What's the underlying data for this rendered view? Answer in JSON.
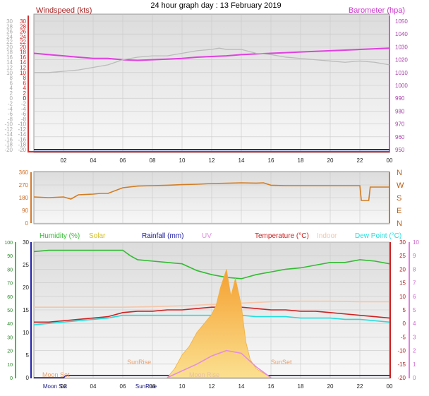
{
  "title": "24 hour graph day : 13 February 2019",
  "chart_data": [
    {
      "type": "line",
      "panel": "wind-baro",
      "left_axis_label": "Windspeed (kts)",
      "right_axis_label": "Barometer (hpa)",
      "left_ticks": [
        30,
        28,
        26,
        24,
        22,
        20,
        18,
        16,
        14,
        12,
        10,
        8,
        6,
        4,
        2,
        0,
        -2,
        -4,
        -6,
        -8,
        -10,
        -12,
        -14,
        -16,
        -18,
        -20
      ],
      "left_ylim": [
        -20,
        30
      ],
      "right_ticks": [
        1050,
        1040,
        1030,
        1020,
        1010,
        1000,
        990,
        980,
        970,
        960,
        950
      ],
      "right_ylim": [
        950,
        1050
      ],
      "x_ticks": [
        "02",
        "04",
        "06",
        "08",
        "10",
        "12",
        "14",
        "16",
        "18",
        "20",
        "22",
        "00"
      ],
      "series": [
        {
          "color": "#e040e0",
          "axis": "right",
          "x": [
            0,
            1,
            2,
            3,
            4,
            5,
            6,
            7,
            8,
            9,
            10,
            11,
            12,
            13,
            14,
            15,
            16,
            17,
            18,
            19,
            20,
            21,
            22,
            23,
            24
          ],
          "values": [
            1025,
            1024,
            1023,
            1022,
            1021,
            1021,
            1020,
            1019.5,
            1020,
            1020.5,
            1021,
            1022,
            1022.5,
            1023,
            1024,
            1024.5,
            1025,
            1025.5,
            1026,
            1026.5,
            1027,
            1027.5,
            1028,
            1028.5,
            1029
          ]
        },
        {
          "color": "#bbbbbb",
          "axis": "left",
          "x": [
            0,
            1,
            2,
            3,
            4,
            5,
            6,
            7,
            8,
            9,
            10,
            11,
            12,
            12.5,
            13,
            14,
            15,
            16,
            17,
            18,
            19,
            20,
            21,
            22,
            23,
            24
          ],
          "values": [
            10,
            10,
            10.5,
            11,
            12,
            13,
            15,
            16,
            16.5,
            16.5,
            17.5,
            18.5,
            19,
            19.5,
            19,
            19,
            17.5,
            17,
            16,
            15.5,
            15,
            14.5,
            14,
            14.5,
            14,
            13
          ]
        }
      ]
    },
    {
      "type": "line",
      "panel": "wind-direction",
      "left_ticks": [
        360,
        270,
        180,
        90,
        0
      ],
      "left_ylim": [
        0,
        360
      ],
      "right_compass": [
        "N",
        "W",
        "S",
        "E",
        "N"
      ],
      "series": [
        {
          "color": "#d27c22",
          "x": [
            0,
            1,
            2,
            2.5,
            3,
            4,
            4.5,
            5,
            6,
            7,
            8,
            9,
            10,
            11,
            12,
            13,
            14,
            15,
            15.5,
            16,
            17,
            18,
            19,
            20,
            21,
            22,
            22.1,
            22.6,
            22.7,
            23,
            24
          ],
          "values": [
            185,
            180,
            185,
            170,
            200,
            205,
            210,
            210,
            250,
            262,
            265,
            268,
            272,
            275,
            280,
            282,
            285,
            283,
            285,
            268,
            265,
            265,
            265,
            265,
            265,
            265,
            160,
            160,
            255,
            255,
            255
          ]
        }
      ]
    },
    {
      "type": "line",
      "panel": "multi",
      "legend": [
        {
          "label": "Humidity (%)",
          "color": "#33bb33"
        },
        {
          "label": "Solar",
          "color": "#d6c020"
        },
        {
          "label": "Rainfall (mm)",
          "color": "#1818a0"
        },
        {
          "label": "UV",
          "color": "#e090e0"
        },
        {
          "label": "Temperature (°C)",
          "color": "#cc2222"
        },
        {
          "label": "Indoor",
          "color": "#f4c6aa"
        },
        {
          "label": "Dew Point (°C)",
          "color": "#22dddd"
        }
      ],
      "humidity_ticks": [
        100,
        90,
        80,
        70,
        60,
        50,
        40,
        30,
        20,
        10,
        0
      ],
      "humidity_ylim": [
        0,
        100
      ],
      "rain_ticks": [
        30,
        25,
        20,
        15,
        10,
        5,
        0
      ],
      "rain_ylim": [
        0,
        30
      ],
      "temp_ticks": [
        30,
        25,
        20,
        15,
        10,
        5,
        0,
        -5,
        -10,
        -15,
        -20
      ],
      "temp_ylim": [
        -20,
        30
      ],
      "uv_ticks": [
        10,
        9,
        8,
        7,
        6,
        5,
        4,
        3,
        2,
        1,
        0
      ],
      "uv_ylim": [
        0,
        10
      ],
      "annotations": {
        "sunrise": "SunRise",
        "sunset": "SunSet",
        "moonset": "Moon Set",
        "moonrise": "Moon Rise",
        "sunrise_bottom": "SunRise",
        "moonset_bottom": "Moon Set"
      },
      "series": [
        {
          "name": "Humidity (%)",
          "color": "#33bb33",
          "x": [
            0,
            1,
            2,
            3,
            4,
            5,
            6,
            6.5,
            7,
            8,
            9,
            10,
            11,
            12,
            13,
            14,
            15,
            16,
            17,
            18,
            19,
            20,
            21,
            22,
            23,
            24
          ],
          "values": [
            93,
            94,
            94,
            94,
            94,
            94,
            94,
            90,
            87,
            86,
            85,
            84,
            79,
            76,
            74,
            73,
            76,
            78,
            80,
            81,
            83,
            85,
            85,
            87,
            86,
            84
          ]
        },
        {
          "name": "Temperature (°C)",
          "color": "#cc2222",
          "x": [
            0,
            1,
            2,
            3,
            4,
            5,
            6,
            7,
            8,
            9,
            10,
            11,
            12,
            13,
            14,
            15,
            16,
            17,
            18,
            19,
            20,
            21,
            22,
            23,
            24
          ],
          "values": [
            0.5,
            0.5,
            1,
            1.5,
            2,
            2.5,
            4,
            4.5,
            4.5,
            5,
            5,
            5.5,
            6,
            6,
            6,
            5.5,
            5,
            5,
            4.5,
            4.5,
            4,
            3.5,
            3,
            2.5,
            2
          ]
        },
        {
          "name": "Dew Point (°C)",
          "color": "#22dddd",
          "x": [
            0,
            1,
            2,
            3,
            4,
            5,
            6,
            7,
            8,
            9,
            10,
            11,
            12,
            13,
            14,
            15,
            16,
            17,
            18,
            19,
            20,
            21,
            22,
            23,
            24
          ],
          "values": [
            -0.5,
            0,
            0.5,
            1,
            1.5,
            2,
            3,
            3,
            3,
            3,
            3,
            3,
            3,
            3,
            3,
            2.5,
            2.5,
            2.5,
            2,
            2,
            2,
            1.5,
            1.5,
            1,
            0.5
          ]
        },
        {
          "name": "Indoor",
          "color": "#f4c6aa",
          "x": [
            0,
            2,
            4,
            6,
            8,
            10,
            12,
            14,
            16,
            18,
            20,
            22,
            24
          ],
          "values": [
            6,
            6,
            6,
            6,
            6.2,
            6.5,
            7,
            7.5,
            8,
            8.2,
            8.2,
            8,
            8
          ]
        },
        {
          "name": "Rainfall (mm)",
          "color": "#1818a0",
          "x": [
            0,
            2,
            2.2,
            24
          ],
          "values": [
            0,
            0,
            0.5,
            0.5
          ]
        },
        {
          "name": "Solar",
          "color": "#f0b040",
          "x": [
            9,
            9.5,
            10,
            10.5,
            11,
            11.5,
            12,
            12.3,
            12.6,
            13,
            13.3,
            13.6,
            14,
            14.3,
            14.6,
            15,
            15.5,
            16
          ],
          "values": [
            0,
            2,
            5,
            7,
            10,
            12,
            14,
            16,
            20,
            24,
            18,
            22,
            16,
            8,
            4,
            2,
            1,
            0
          ]
        },
        {
          "name": "UV",
          "color": "#e090e0",
          "x": [
            9,
            10,
            11,
            12,
            13,
            14,
            15,
            16
          ],
          "values": [
            0,
            0.5,
            1,
            1.6,
            2,
            1.8,
            0.8,
            0
          ]
        }
      ]
    }
  ]
}
